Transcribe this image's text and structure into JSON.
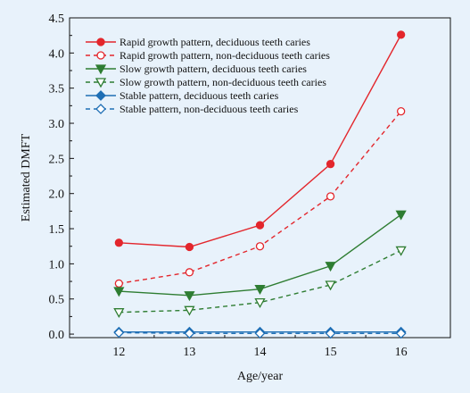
{
  "chart_data": {
    "type": "line",
    "title": "",
    "xlabel": "Age/year",
    "ylabel": "Estimated DMFT",
    "x": [
      12,
      13,
      14,
      15,
      16
    ],
    "x_ticks": [
      "12",
      "13",
      "14",
      "15",
      "16"
    ],
    "xlim": [
      11.3,
      16.7
    ],
    "ylim": [
      -0.05,
      4.5
    ],
    "y_ticks": [
      "0.0",
      "0.5",
      "1.0",
      "1.5",
      "2.0",
      "2.5",
      "3.0",
      "3.5",
      "4.0",
      "4.5"
    ],
    "grid": false,
    "legend_position": "top-left",
    "series": [
      {
        "name": "Rapid growth pattern, deciduous teeth caries",
        "values": [
          1.3,
          1.24,
          1.55,
          2.42,
          4.26
        ],
        "color": "#e3262c",
        "dash": "solid",
        "marker": "circle",
        "filled": true
      },
      {
        "name": "Rapid growth pattern, non-deciduous teeth caries",
        "values": [
          0.72,
          0.88,
          1.25,
          1.96,
          3.17
        ],
        "color": "#e3262c",
        "dash": "dashed",
        "marker": "circle",
        "filled": false
      },
      {
        "name": "Slow growth pattern, deciduous teeth caries",
        "values": [
          0.61,
          0.55,
          0.64,
          0.97,
          1.7
        ],
        "color": "#2e7d32",
        "dash": "solid",
        "marker": "triangle-down",
        "filled": true
      },
      {
        "name": "Slow growth pattern, non-deciduous teeth caries",
        "values": [
          0.31,
          0.34,
          0.45,
          0.7,
          1.19
        ],
        "color": "#2e7d32",
        "dash": "dashed",
        "marker": "triangle-down",
        "filled": false
      },
      {
        "name": "Stable pattern, deciduous teeth caries",
        "values": [
          0.03,
          0.03,
          0.03,
          0.03,
          0.03
        ],
        "color": "#1f6fb5",
        "dash": "solid",
        "marker": "diamond",
        "filled": true
      },
      {
        "name": "Stable pattern, non-deciduous teeth caries",
        "values": [
          0.02,
          0.01,
          0.01,
          0.01,
          0.01
        ],
        "color": "#1f6fb5",
        "dash": "dashed",
        "marker": "diamond",
        "filled": false
      }
    ]
  }
}
